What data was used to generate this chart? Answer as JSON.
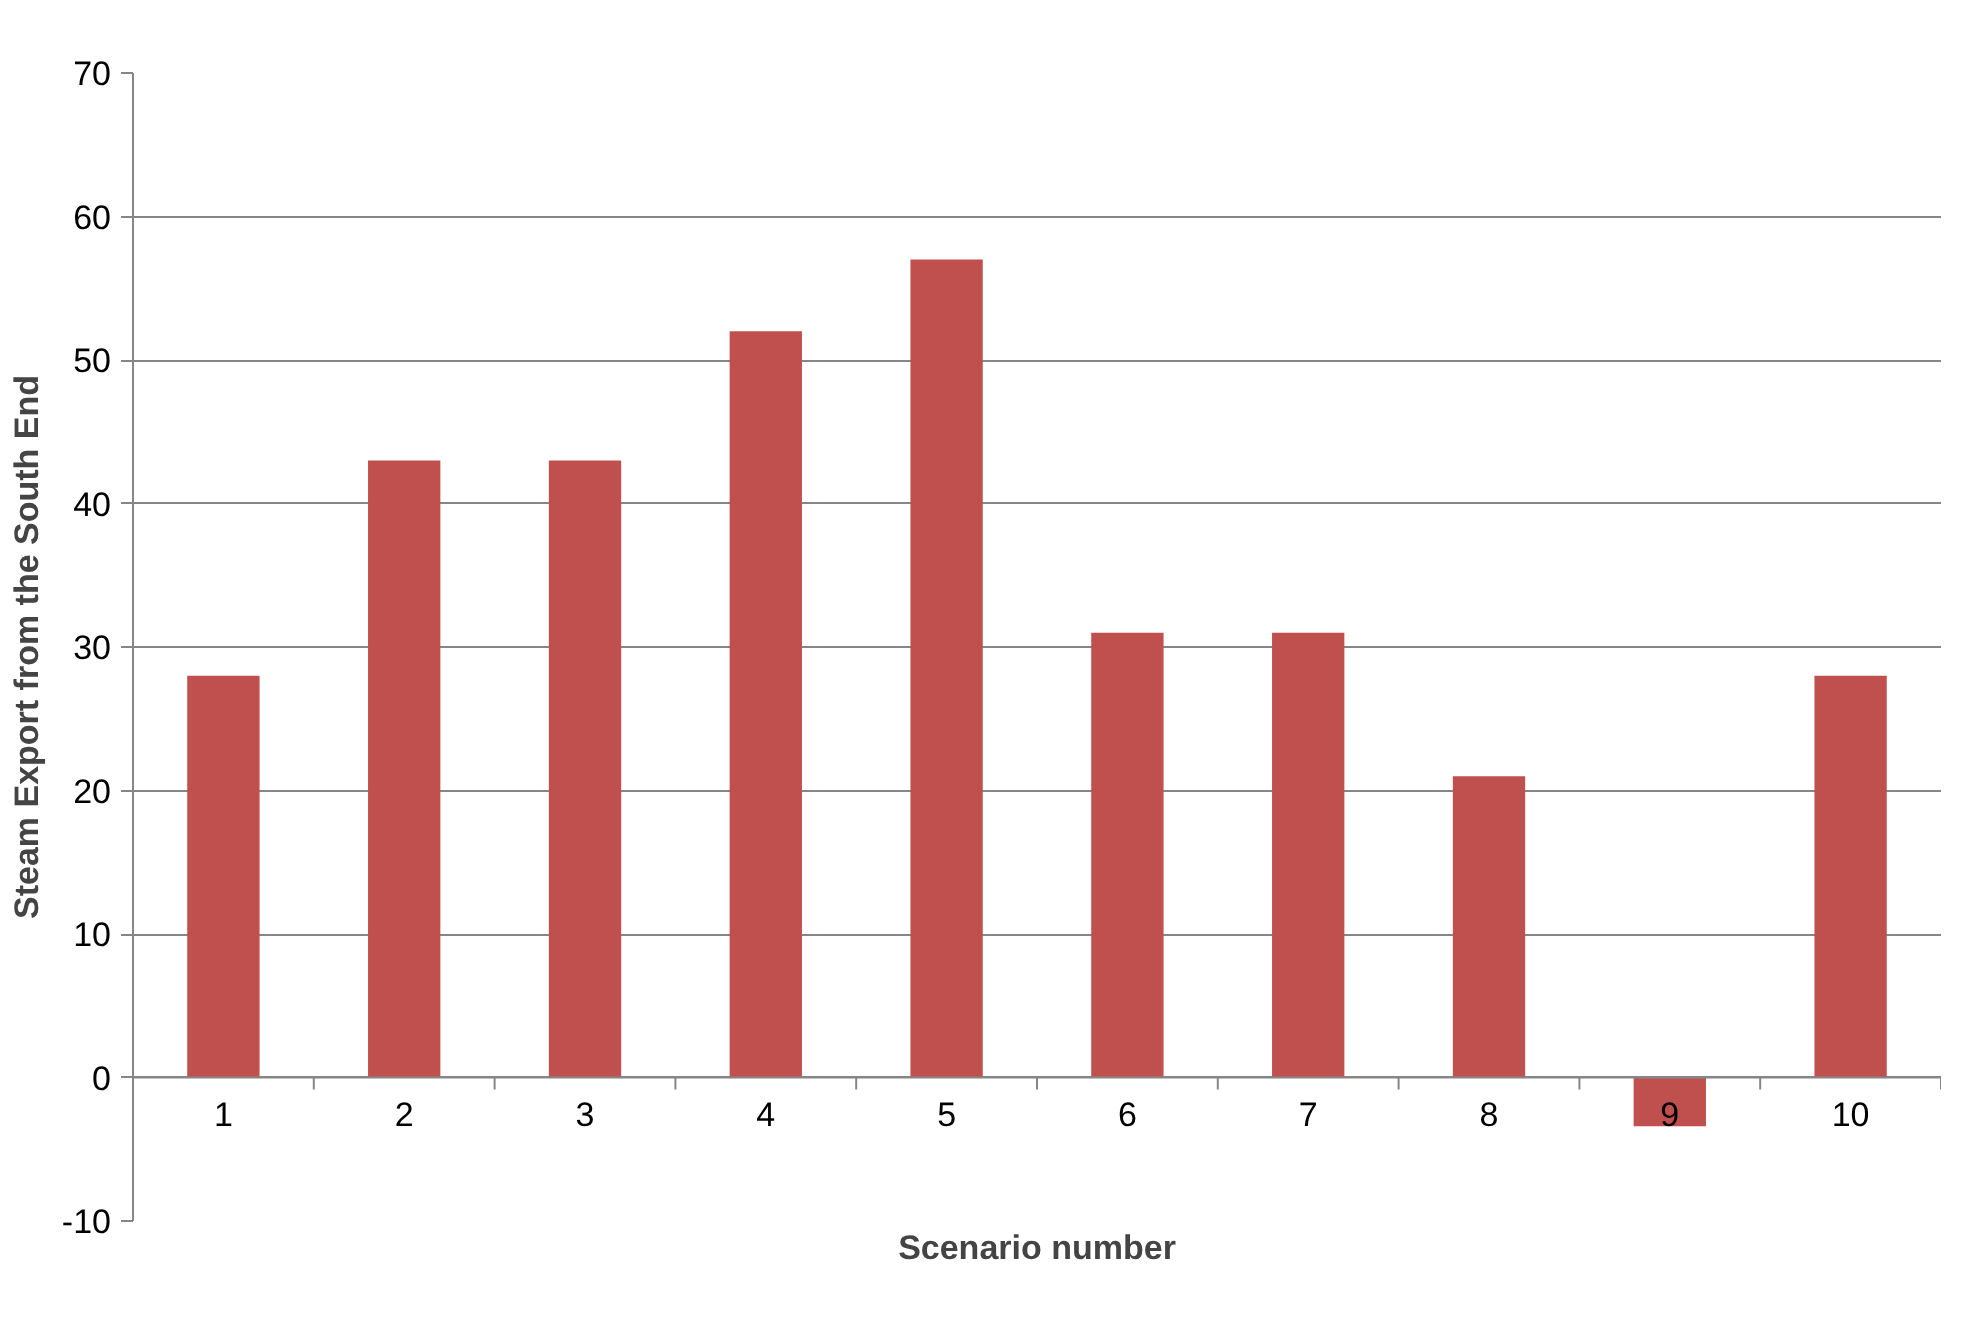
{
  "chart_data": {
    "type": "bar",
    "xlabel": "Scenario number",
    "ylabel": "Steam Export from the South End",
    "categories": [
      "1",
      "2",
      "3",
      "4",
      "5",
      "6",
      "7",
      "8",
      "9",
      "10"
    ],
    "values": [
      28,
      43,
      43,
      52,
      57,
      31,
      31,
      21,
      -3.4,
      28
    ],
    "color": "#c0504d",
    "ylim": [
      -10,
      70
    ],
    "yticks": [
      -10,
      0,
      10,
      20,
      30,
      40,
      50,
      60,
      70
    ],
    "grid": "y"
  }
}
